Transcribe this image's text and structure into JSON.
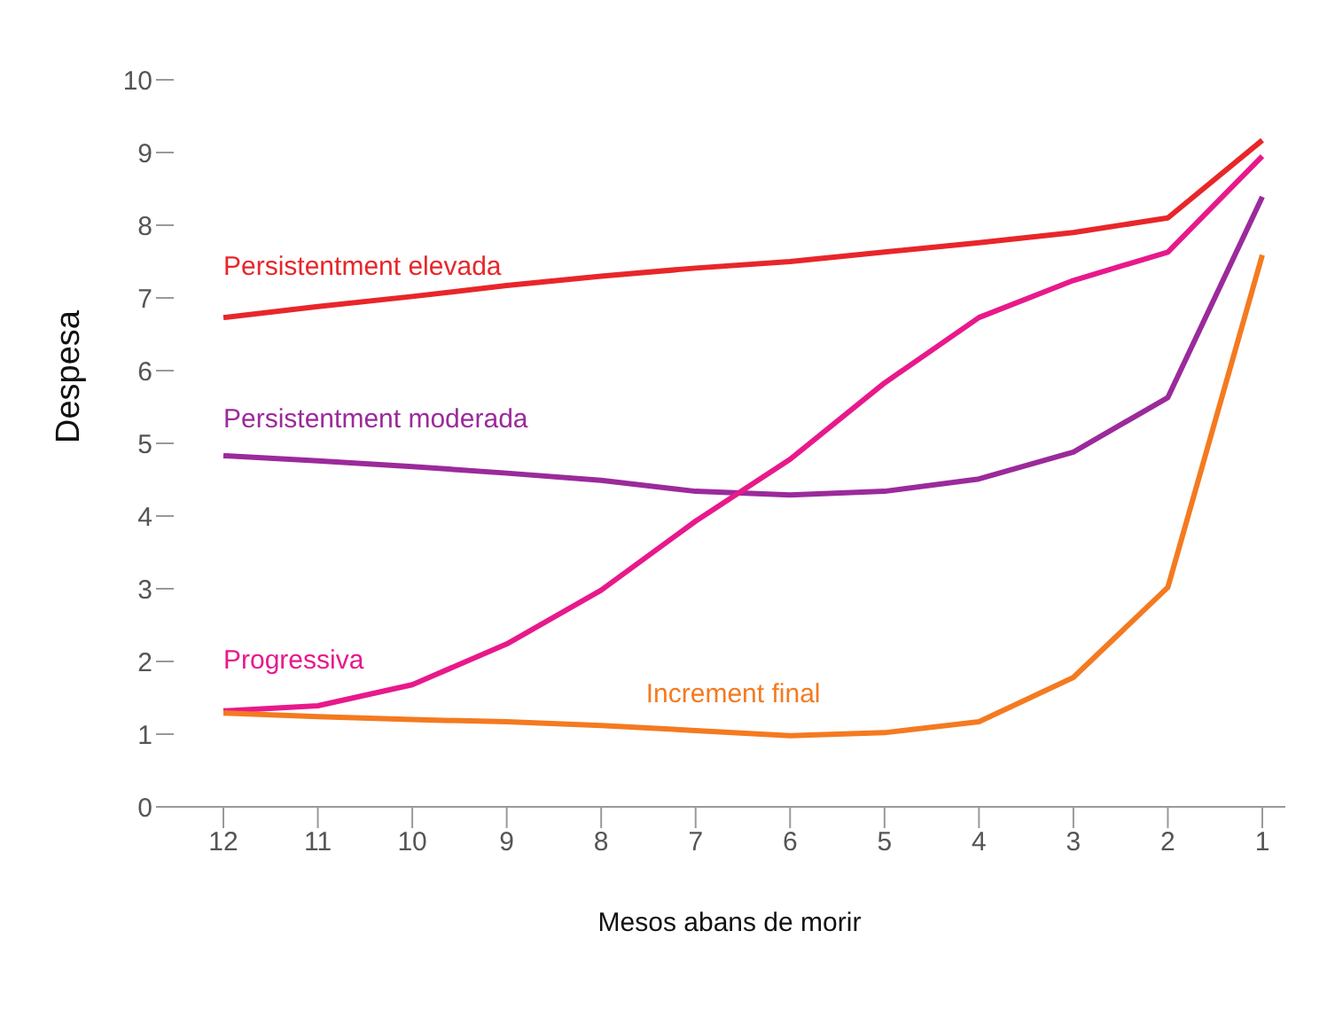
{
  "chart_data": {
    "type": "line",
    "xlabel": "Mesos abans de morir",
    "ylabel": "Despesa",
    "categories": [
      "12",
      "11",
      "10",
      "9",
      "8",
      "7",
      "6",
      "5",
      "4",
      "3",
      "2",
      "1"
    ],
    "series": [
      {
        "name": "Persistentment elevada",
        "color": "#e8262a",
        "values": [
          6.73,
          6.88,
          7.02,
          7.17,
          7.3,
          7.41,
          7.5,
          7.63,
          7.76,
          7.9,
          8.1,
          9.17
        ]
      },
      {
        "name": "Persistentment moderada",
        "color": "#9b2a9b",
        "values": [
          4.83,
          4.76,
          4.68,
          4.59,
          4.49,
          4.34,
          4.29,
          4.34,
          4.51,
          4.88,
          5.63,
          8.39
        ]
      },
      {
        "name": "Progressiva",
        "color": "#e8198b",
        "values": [
          1.32,
          1.39,
          1.68,
          2.24,
          2.98,
          3.93,
          4.78,
          5.83,
          6.73,
          7.24,
          7.63,
          8.95
        ]
      },
      {
        "name": "Increment final",
        "color": "#f47a20",
        "values": [
          1.29,
          1.24,
          1.2,
          1.17,
          1.12,
          1.05,
          0.98,
          1.02,
          1.17,
          1.78,
          3.02,
          7.59
        ]
      }
    ],
    "ylim": [
      0,
      10
    ],
    "yticks": [
      0,
      1,
      2,
      3,
      4,
      5,
      6,
      7,
      8,
      9,
      10
    ],
    "grid": false,
    "legend": false,
    "marker": "none",
    "line_style": "solid"
  }
}
